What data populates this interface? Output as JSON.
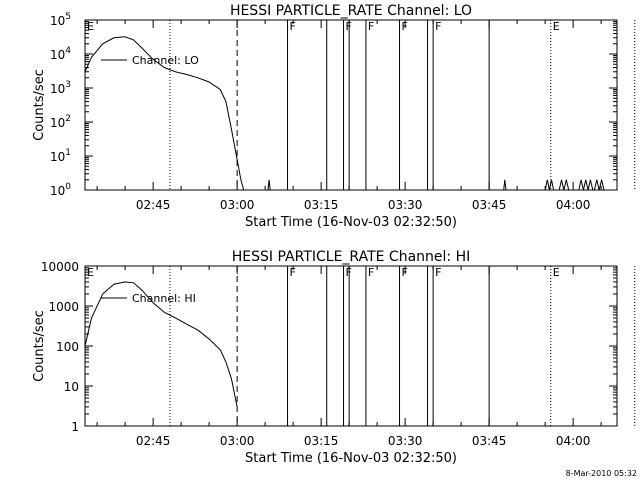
{
  "footer_timestamp": "8-Mar-2010 05:32",
  "chart_data": [
    {
      "type": "line",
      "title": "HESSI PARTICLE_RATE Channel: LO",
      "xlabel": "Start Time (16-Nov-03 02:32:50)",
      "ylabel": "Counts/sec",
      "yscale": "log",
      "ylim": [
        1,
        100000
      ],
      "xlim_minutes": [
        0,
        95
      ],
      "x_ticks": [
        "02:45",
        "03:00",
        "03:15",
        "03:30",
        "03:45",
        "04:00"
      ],
      "y_ticks": [
        "10^0",
        "10^1",
        "10^2",
        "10^3",
        "10^4",
        "10^5"
      ],
      "legend": "Channel: LO",
      "series": [
        {
          "name": "Channel: LO",
          "x": [
            "02:32:50",
            "02:34:00",
            "02:36:00",
            "02:38:00",
            "02:40:00",
            "02:41:30",
            "02:43:00",
            "02:45:00",
            "02:47:00",
            "02:49:00",
            "02:51:00",
            "02:53:00",
            "02:55:00",
            "02:57:00",
            "02:58:00",
            "02:59:00",
            "03:00:00",
            "03:00:40",
            "03:01:10"
          ],
          "y": [
            3000,
            8000,
            20000,
            30000,
            32000,
            26000,
            15000,
            7000,
            4000,
            3000,
            2500,
            2000,
            1500,
            900,
            400,
            60,
            8,
            2,
            1
          ]
        }
      ],
      "annotations": [
        {
          "label": "E",
          "time": "02:32:50",
          "style": "none"
        },
        {
          "label": "",
          "time": "02:48:00",
          "style": "dotted"
        },
        {
          "label": "",
          "time": "03:00:00",
          "style": "dashed"
        },
        {
          "label": "F",
          "time": "03:09:00",
          "style": "solid"
        },
        {
          "label": "",
          "time": "03:16:00",
          "style": "solid"
        },
        {
          "label": "F",
          "time": "03:19:00",
          "style": "solid"
        },
        {
          "label": "",
          "time": "03:20:00",
          "style": "solid"
        },
        {
          "label": "F",
          "time": "03:23:00",
          "style": "solid"
        },
        {
          "label": "F",
          "time": "03:29:00",
          "style": "solid"
        },
        {
          "label": "",
          "time": "03:34:00",
          "style": "solid"
        },
        {
          "label": "F",
          "time": "03:35:00",
          "style": "solid"
        },
        {
          "label": "",
          "time": "03:45:00",
          "style": "solid"
        },
        {
          "label": "E",
          "time": "03:56:00",
          "style": "dotted"
        },
        {
          "label": "",
          "time": "04:11:00",
          "style": "dotted"
        }
      ]
    },
    {
      "type": "line",
      "title": "HESSI PARTICLE_RATE Channel: HI",
      "xlabel": "Start Time (16-Nov-03 02:32:50)",
      "ylabel": "Counts/sec",
      "yscale": "log",
      "ylim": [
        1,
        10000
      ],
      "xlim_minutes": [
        0,
        95
      ],
      "x_ticks": [
        "02:45",
        "03:00",
        "03:15",
        "03:30",
        "03:45",
        "04:00"
      ],
      "y_ticks": [
        "1",
        "10",
        "100",
        "1000",
        "10000"
      ],
      "legend": "Channel: HI",
      "series": [
        {
          "name": "Channel: HI",
          "x": [
            "02:32:50",
            "02:34:00",
            "02:36:00",
            "02:38:00",
            "02:40:00",
            "02:41:30",
            "02:43:00",
            "02:45:00",
            "02:47:00",
            "02:49:00",
            "02:51:00",
            "02:53:00",
            "02:55:00",
            "02:57:00",
            "02:58:00",
            "02:59:00",
            "03:00:00"
          ],
          "y": [
            100,
            500,
            2000,
            3500,
            4000,
            3800,
            2500,
            1200,
            700,
            500,
            350,
            250,
            150,
            80,
            40,
            15,
            3
          ]
        }
      ],
      "annotations": [
        {
          "label": "E",
          "time": "02:32:50",
          "style": "none"
        },
        {
          "label": "",
          "time": "02:48:00",
          "style": "dotted"
        },
        {
          "label": "",
          "time": "03:00:00",
          "style": "dashed"
        },
        {
          "label": "F",
          "time": "03:09:00",
          "style": "solid"
        },
        {
          "label": "",
          "time": "03:16:00",
          "style": "solid"
        },
        {
          "label": "F",
          "time": "03:19:00",
          "style": "solid"
        },
        {
          "label": "",
          "time": "03:20:00",
          "style": "solid"
        },
        {
          "label": "F",
          "time": "03:23:00",
          "style": "solid"
        },
        {
          "label": "F",
          "time": "03:29:00",
          "style": "solid"
        },
        {
          "label": "",
          "time": "03:34:00",
          "style": "solid"
        },
        {
          "label": "F",
          "time": "03:35:00",
          "style": "solid"
        },
        {
          "label": "",
          "time": "03:45:00",
          "style": "solid"
        },
        {
          "label": "E",
          "time": "03:56:00",
          "style": "dotted"
        },
        {
          "label": "",
          "time": "04:11:00",
          "style": "dotted"
        }
      ]
    }
  ]
}
